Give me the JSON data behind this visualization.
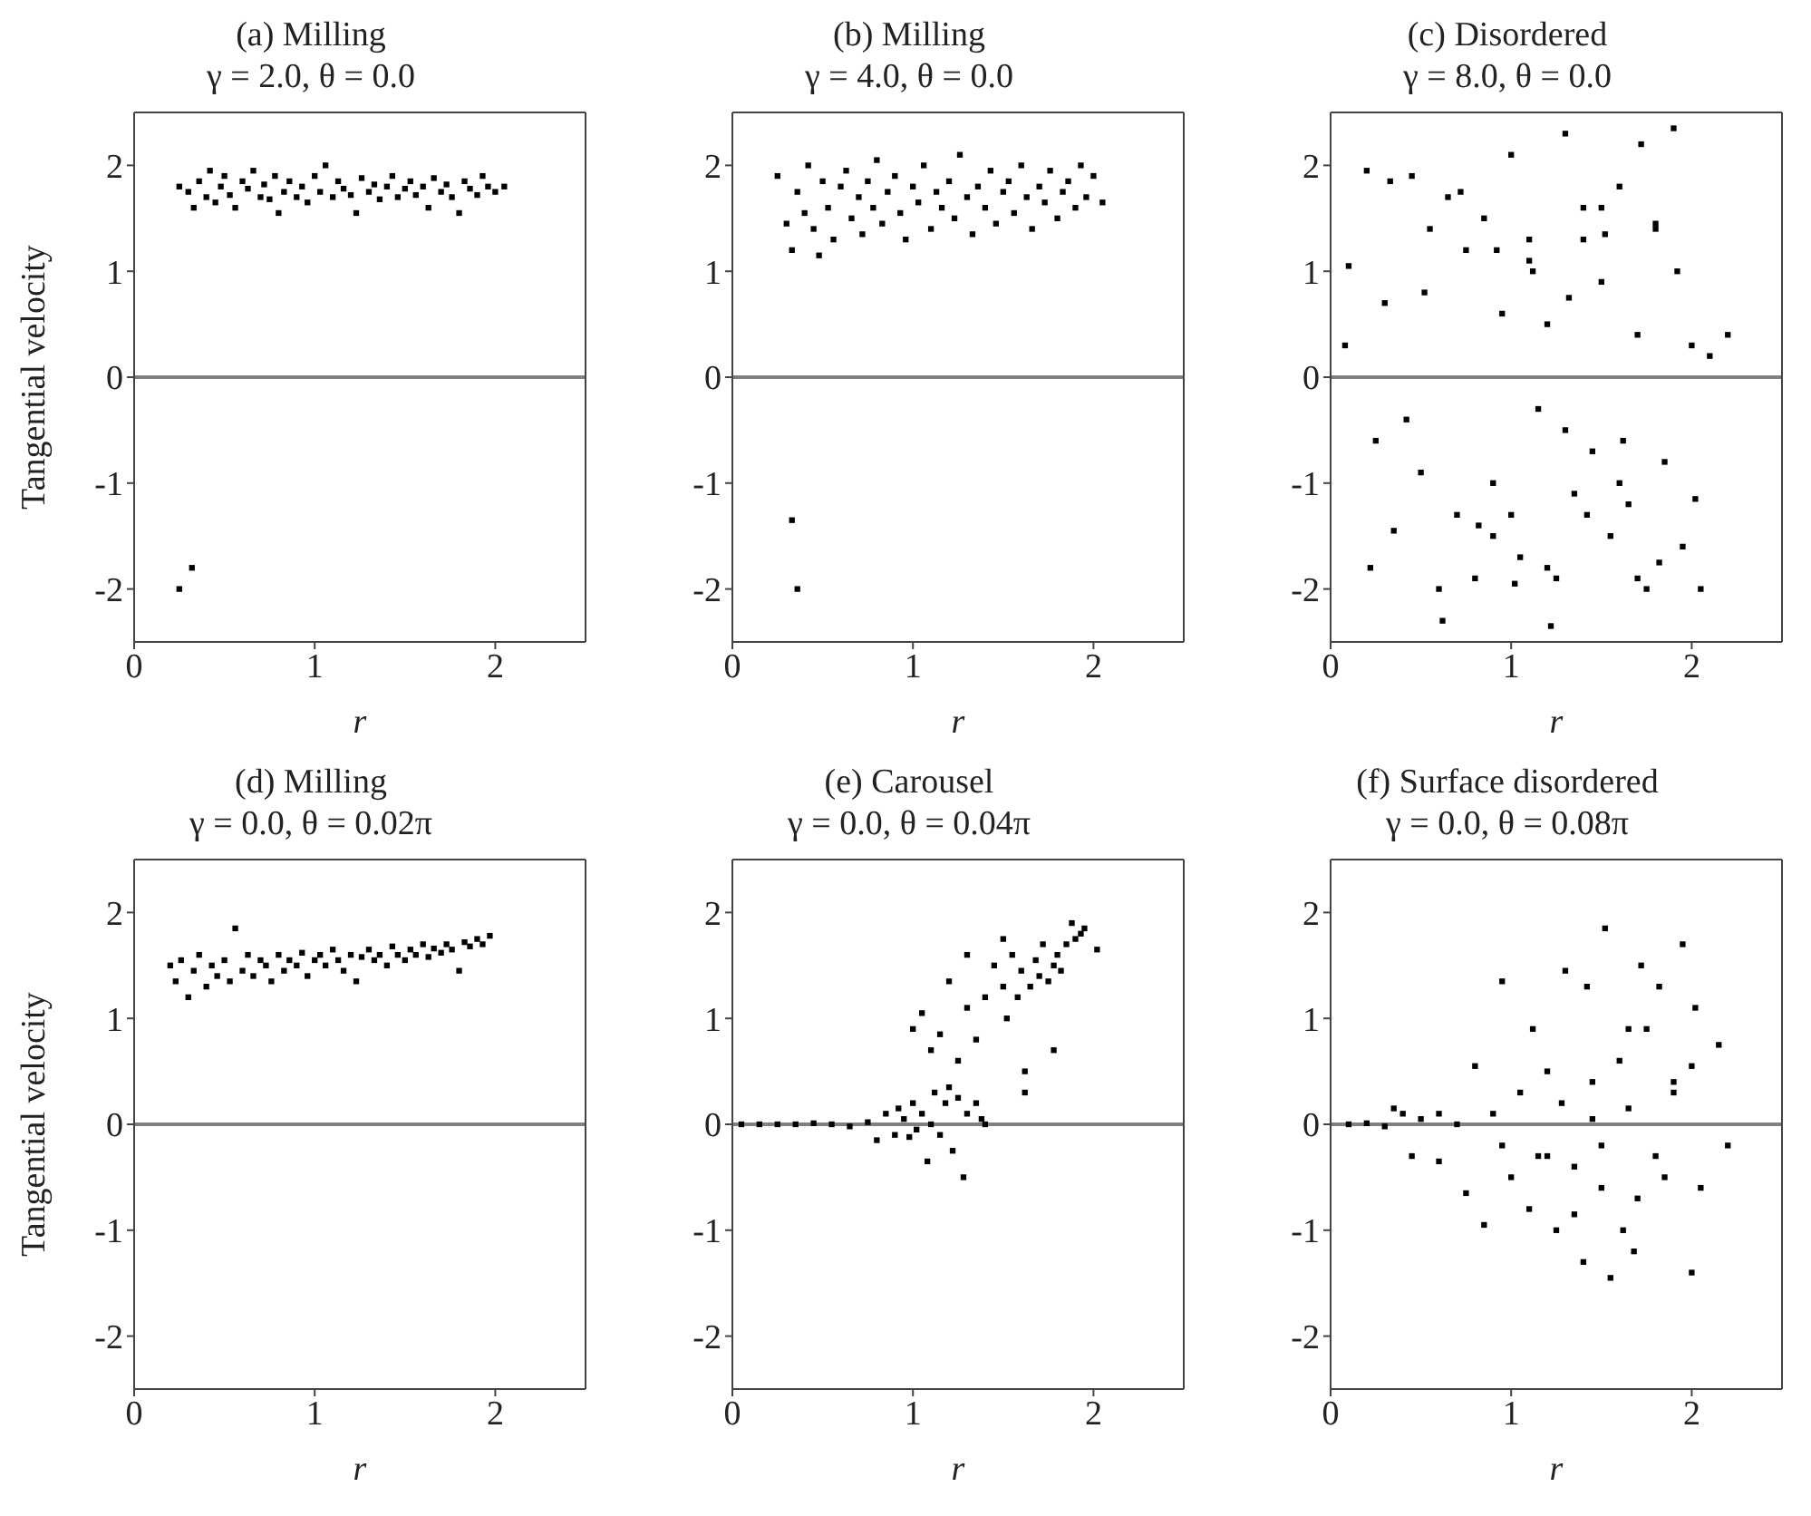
{
  "chart_data": [
    {
      "type": "scatter",
      "title": "(a) Milling",
      "subtitle": "γ = 2.0, θ = 0.0",
      "xlabel": "r",
      "ylabel": "Tangential velocity",
      "xlim": [
        0,
        2.5
      ],
      "ylim": [
        -2.5,
        2.5
      ],
      "xticks": [
        0,
        1,
        2
      ],
      "yticks": [
        -2,
        -1,
        0,
        1,
        2
      ],
      "marker": "square",
      "ref_lines": [
        {
          "axis": "y",
          "value": 0,
          "color": "#808080"
        }
      ],
      "series": [
        {
          "color": "#000000",
          "x": [
            0.25,
            0.3,
            0.33,
            0.36,
            0.4,
            0.42,
            0.45,
            0.48,
            0.5,
            0.53,
            0.56,
            0.6,
            0.63,
            0.66,
            0.7,
            0.72,
            0.75,
            0.78,
            0.8,
            0.83,
            0.86,
            0.9,
            0.93,
            0.96,
            1.0,
            1.03,
            1.06,
            1.1,
            1.13,
            1.16,
            1.2,
            1.23,
            1.26,
            1.3,
            1.33,
            1.36,
            1.4,
            1.43,
            1.46,
            1.5,
            1.53,
            1.56,
            1.6,
            1.63,
            1.66,
            1.7,
            1.73,
            1.76,
            1.8,
            1.83,
            1.86,
            1.9,
            1.93,
            1.96,
            2.0,
            2.05,
            0.25,
            0.32
          ],
          "values": [
            1.8,
            1.75,
            1.6,
            1.85,
            1.7,
            1.95,
            1.65,
            1.8,
            1.9,
            1.72,
            1.6,
            1.85,
            1.78,
            1.95,
            1.7,
            1.82,
            1.68,
            1.9,
            1.55,
            1.75,
            1.85,
            1.7,
            1.8,
            1.65,
            1.9,
            1.75,
            2.0,
            1.7,
            1.85,
            1.78,
            1.72,
            1.55,
            1.88,
            1.75,
            1.82,
            1.68,
            1.8,
            1.9,
            1.7,
            1.78,
            1.85,
            1.72,
            1.8,
            1.6,
            1.88,
            1.75,
            1.82,
            1.7,
            1.55,
            1.85,
            1.78,
            1.72,
            1.9,
            1.8,
            1.75,
            1.8,
            -2.0,
            -1.8
          ]
        }
      ]
    },
    {
      "type": "scatter",
      "title": "(b) Milling",
      "subtitle": "γ = 4.0, θ = 0.0",
      "xlabel": "r",
      "xlim": [
        0,
        2.5
      ],
      "ylim": [
        -2.5,
        2.5
      ],
      "xticks": [
        0,
        1,
        2
      ],
      "yticks": [
        -2,
        -1,
        0,
        1,
        2
      ],
      "marker": "square",
      "ref_lines": [
        {
          "axis": "y",
          "value": 0,
          "color": "#808080"
        }
      ],
      "series": [
        {
          "color": "#000000",
          "x": [
            0.25,
            0.3,
            0.33,
            0.36,
            0.4,
            0.42,
            0.45,
            0.48,
            0.5,
            0.53,
            0.56,
            0.6,
            0.63,
            0.66,
            0.7,
            0.72,
            0.75,
            0.78,
            0.8,
            0.83,
            0.86,
            0.9,
            0.93,
            0.96,
            1.0,
            1.03,
            1.06,
            1.1,
            1.13,
            1.16,
            1.2,
            1.23,
            1.26,
            1.3,
            1.33,
            1.36,
            1.4,
            1.43,
            1.46,
            1.5,
            1.53,
            1.56,
            1.6,
            1.63,
            1.66,
            1.7,
            1.73,
            1.76,
            1.8,
            1.83,
            1.86,
            1.9,
            1.93,
            1.96,
            2.0,
            2.05,
            0.33,
            0.36
          ],
          "values": [
            1.9,
            1.45,
            1.2,
            1.75,
            1.55,
            2.0,
            1.4,
            1.15,
            1.85,
            1.6,
            1.3,
            1.8,
            1.95,
            1.5,
            1.7,
            1.35,
            1.85,
            1.6,
            2.05,
            1.45,
            1.75,
            1.9,
            1.55,
            1.3,
            1.8,
            1.65,
            2.0,
            1.4,
            1.75,
            1.6,
            1.85,
            1.5,
            2.1,
            1.7,
            1.35,
            1.8,
            1.6,
            1.95,
            1.45,
            1.75,
            1.85,
            1.55,
            2.0,
            1.7,
            1.4,
            1.8,
            1.65,
            1.95,
            1.5,
            1.75,
            1.85,
            1.6,
            2.0,
            1.7,
            1.9,
            1.65,
            -1.35,
            -2.0
          ]
        }
      ]
    },
    {
      "type": "scatter",
      "title": "(c) Disordered",
      "subtitle": "γ = 8.0, θ = 0.0",
      "xlabel": "r",
      "xlim": [
        0,
        2.5
      ],
      "ylim": [
        -2.5,
        2.5
      ],
      "xticks": [
        0,
        1,
        2
      ],
      "yticks": [
        -2,
        -1,
        0,
        1,
        2
      ],
      "marker": "square",
      "ref_lines": [
        {
          "axis": "y",
          "value": 0,
          "color": "#808080"
        }
      ],
      "series": [
        {
          "color": "#000000",
          "x": [
            0.1,
            0.2,
            0.25,
            0.3,
            0.35,
            0.45,
            0.5,
            0.55,
            0.6,
            0.65,
            0.7,
            0.75,
            0.8,
            0.85,
            0.9,
            0.95,
            1.0,
            1.05,
            1.1,
            1.15,
            1.2,
            1.25,
            1.3,
            1.35,
            1.4,
            1.45,
            1.5,
            1.55,
            1.6,
            1.65,
            1.7,
            1.75,
            1.8,
            1.85,
            1.9,
            1.95,
            2.0,
            2.05,
            2.1,
            2.2,
            0.08,
            0.22,
            0.33,
            0.42,
            0.52,
            0.62,
            0.72,
            0.82,
            0.92,
            1.02,
            1.12,
            1.22,
            1.32,
            1.42,
            1.52,
            1.62,
            1.72,
            1.82,
            1.92,
            2.02,
            1.0,
            1.2,
            1.4,
            1.6,
            1.8,
            0.9,
            1.1,
            1.3,
            1.5,
            1.7
          ],
          "values": [
            1.05,
            1.95,
            -0.6,
            0.7,
            -1.45,
            1.9,
            -0.9,
            1.4,
            -2.0,
            1.7,
            -1.3,
            1.2,
            -1.9,
            1.5,
            -1.0,
            0.6,
            2.1,
            -1.7,
            1.3,
            -0.3,
            0.5,
            -1.9,
            2.3,
            -1.1,
            1.6,
            -0.7,
            0.9,
            -1.5,
            1.8,
            -1.2,
            0.4,
            -2.0,
            1.45,
            -0.8,
            2.35,
            -1.6,
            0.3,
            -2.0,
            0.2,
            0.4,
            0.3,
            -1.8,
            1.85,
            -0.4,
            0.8,
            -2.3,
            1.75,
            -1.4,
            1.2,
            -1.95,
            1.0,
            -2.35,
            0.75,
            -1.3,
            1.35,
            -0.6,
            2.2,
            -1.75,
            1.0,
            -1.15,
            -1.3,
            -1.8,
            1.3,
            -1.0,
            1.4,
            -1.5,
            1.1,
            -0.5,
            1.6,
            -1.9
          ]
        }
      ]
    },
    {
      "type": "scatter",
      "title": "(d) Milling",
      "subtitle": "γ = 0.0, θ = 0.02π",
      "xlabel": "r",
      "ylabel": "Tangential velocity",
      "xlim": [
        0,
        2.5
      ],
      "ylim": [
        -2.5,
        2.5
      ],
      "xticks": [
        0,
        1,
        2
      ],
      "yticks": [
        -2,
        -1,
        0,
        1,
        2
      ],
      "marker": "square",
      "ref_lines": [
        {
          "axis": "y",
          "value": 0,
          "color": "#808080"
        }
      ],
      "series": [
        {
          "color": "#000000",
          "x": [
            0.2,
            0.23,
            0.26,
            0.3,
            0.33,
            0.36,
            0.4,
            0.43,
            0.46,
            0.5,
            0.53,
            0.56,
            0.6,
            0.63,
            0.66,
            0.7,
            0.73,
            0.76,
            0.8,
            0.83,
            0.86,
            0.9,
            0.93,
            0.96,
            1.0,
            1.03,
            1.06,
            1.1,
            1.13,
            1.16,
            1.2,
            1.23,
            1.26,
            1.3,
            1.33,
            1.36,
            1.4,
            1.43,
            1.46,
            1.5,
            1.53,
            1.56,
            1.6,
            1.63,
            1.66,
            1.7,
            1.73,
            1.76,
            1.8,
            1.83,
            1.86,
            1.9,
            1.93,
            1.97
          ],
          "values": [
            1.5,
            1.35,
            1.55,
            1.2,
            1.45,
            1.6,
            1.3,
            1.5,
            1.4,
            1.55,
            1.35,
            1.85,
            1.45,
            1.6,
            1.4,
            1.55,
            1.5,
            1.35,
            1.6,
            1.45,
            1.55,
            1.5,
            1.62,
            1.4,
            1.55,
            1.6,
            1.5,
            1.65,
            1.55,
            1.45,
            1.6,
            1.35,
            1.58,
            1.65,
            1.55,
            1.6,
            1.5,
            1.68,
            1.6,
            1.55,
            1.65,
            1.6,
            1.7,
            1.58,
            1.66,
            1.62,
            1.7,
            1.65,
            1.45,
            1.72,
            1.68,
            1.75,
            1.7,
            1.78
          ]
        }
      ]
    },
    {
      "type": "scatter",
      "title": "(e) Carousel",
      "subtitle": "γ = 0.0, θ = 0.04π",
      "xlabel": "r",
      "xlim": [
        0,
        2.5
      ],
      "ylim": [
        -2.5,
        2.5
      ],
      "xticks": [
        0,
        1,
        2
      ],
      "yticks": [
        -2,
        -1,
        0,
        1,
        2
      ],
      "marker": "square",
      "ref_lines": [
        {
          "axis": "y",
          "value": 0,
          "color": "#808080"
        }
      ],
      "series": [
        {
          "color": "#000000",
          "x": [
            0.05,
            0.15,
            0.25,
            0.35,
            0.45,
            0.55,
            0.65,
            0.75,
            0.8,
            0.85,
            0.9,
            0.92,
            0.95,
            0.98,
            1.0,
            1.02,
            1.05,
            1.08,
            1.1,
            1.12,
            1.15,
            1.18,
            1.2,
            1.22,
            1.25,
            1.28,
            1.3,
            1.35,
            1.38,
            1.4,
            1.0,
            1.05,
            1.1,
            1.15,
            1.2,
            1.25,
            1.3,
            1.35,
            1.4,
            1.45,
            1.5,
            1.52,
            1.55,
            1.58,
            1.6,
            1.62,
            1.65,
            1.68,
            1.7,
            1.72,
            1.75,
            1.78,
            1.8,
            1.82,
            1.85,
            1.88,
            1.9,
            1.93,
            1.95,
            2.02,
            1.62,
            1.78,
            1.5,
            1.3
          ],
          "values": [
            0,
            0,
            0,
            0,
            0.01,
            0,
            -0.02,
            0.02,
            -0.15,
            0.1,
            -0.1,
            0.15,
            0.05,
            -0.12,
            0.2,
            -0.05,
            0.1,
            -0.35,
            0.0,
            0.3,
            -0.1,
            0.2,
            0.35,
            -0.25,
            0.25,
            -0.5,
            0.1,
            0.2,
            0.05,
            0.0,
            0.9,
            1.05,
            0.7,
            0.85,
            1.35,
            0.6,
            1.6,
            0.8,
            1.2,
            1.5,
            1.3,
            1.0,
            1.6,
            1.2,
            1.45,
            0.5,
            1.3,
            1.55,
            1.4,
            1.7,
            1.35,
            1.5,
            1.6,
            1.45,
            1.7,
            1.9,
            1.75,
            1.8,
            1.85,
            1.65,
            0.3,
            0.7,
            1.75,
            1.1
          ]
        }
      ]
    },
    {
      "type": "scatter",
      "title": "(f) Surface disordered",
      "subtitle": "γ = 0.0, θ = 0.08π",
      "xlabel": "r",
      "xlim": [
        0,
        2.5
      ],
      "ylim": [
        -2.5,
        2.5
      ],
      "xticks": [
        0,
        1,
        2
      ],
      "yticks": [
        -2,
        -1,
        0,
        1,
        2
      ],
      "marker": "square",
      "ref_lines": [
        {
          "axis": "y",
          "value": 0,
          "color": "#808080"
        }
      ],
      "series": [
        {
          "color": "#000000",
          "x": [
            0.1,
            0.2,
            0.3,
            0.4,
            0.45,
            0.5,
            0.6,
            0.7,
            0.75,
            0.8,
            0.85,
            0.9,
            0.95,
            1.0,
            1.05,
            1.1,
            1.12,
            1.15,
            1.2,
            1.25,
            1.28,
            1.3,
            1.35,
            1.4,
            1.42,
            1.45,
            1.5,
            1.52,
            1.55,
            1.6,
            1.62,
            1.65,
            1.7,
            1.72,
            1.75,
            1.8,
            1.82,
            1.85,
            1.9,
            1.95,
            2.0,
            2.02,
            2.05,
            2.15,
            2.2,
            0.35,
            0.6,
            0.95,
            1.2,
            1.45,
            1.5,
            1.68,
            1.9,
            2.0,
            1.65,
            1.35
          ],
          "values": [
            0,
            0.01,
            -0.02,
            0.1,
            -0.3,
            0.05,
            -0.35,
            0.0,
            -0.65,
            0.55,
            -0.95,
            0.1,
            1.35,
            -0.5,
            0.3,
            -0.8,
            0.9,
            -0.3,
            0.5,
            -1.0,
            0.2,
            1.45,
            -0.4,
            -1.3,
            1.3,
            0.4,
            -0.6,
            1.85,
            -1.45,
            0.6,
            -1.0,
            0.15,
            -0.7,
            1.5,
            0.9,
            -0.3,
            1.3,
            -0.5,
            0.4,
            1.7,
            -1.4,
            1.1,
            -0.6,
            0.75,
            -0.2,
            0.15,
            0.1,
            -0.2,
            -0.3,
            0.05,
            -0.2,
            -1.2,
            0.3,
            0.55,
            0.9,
            -0.85
          ]
        }
      ]
    }
  ]
}
